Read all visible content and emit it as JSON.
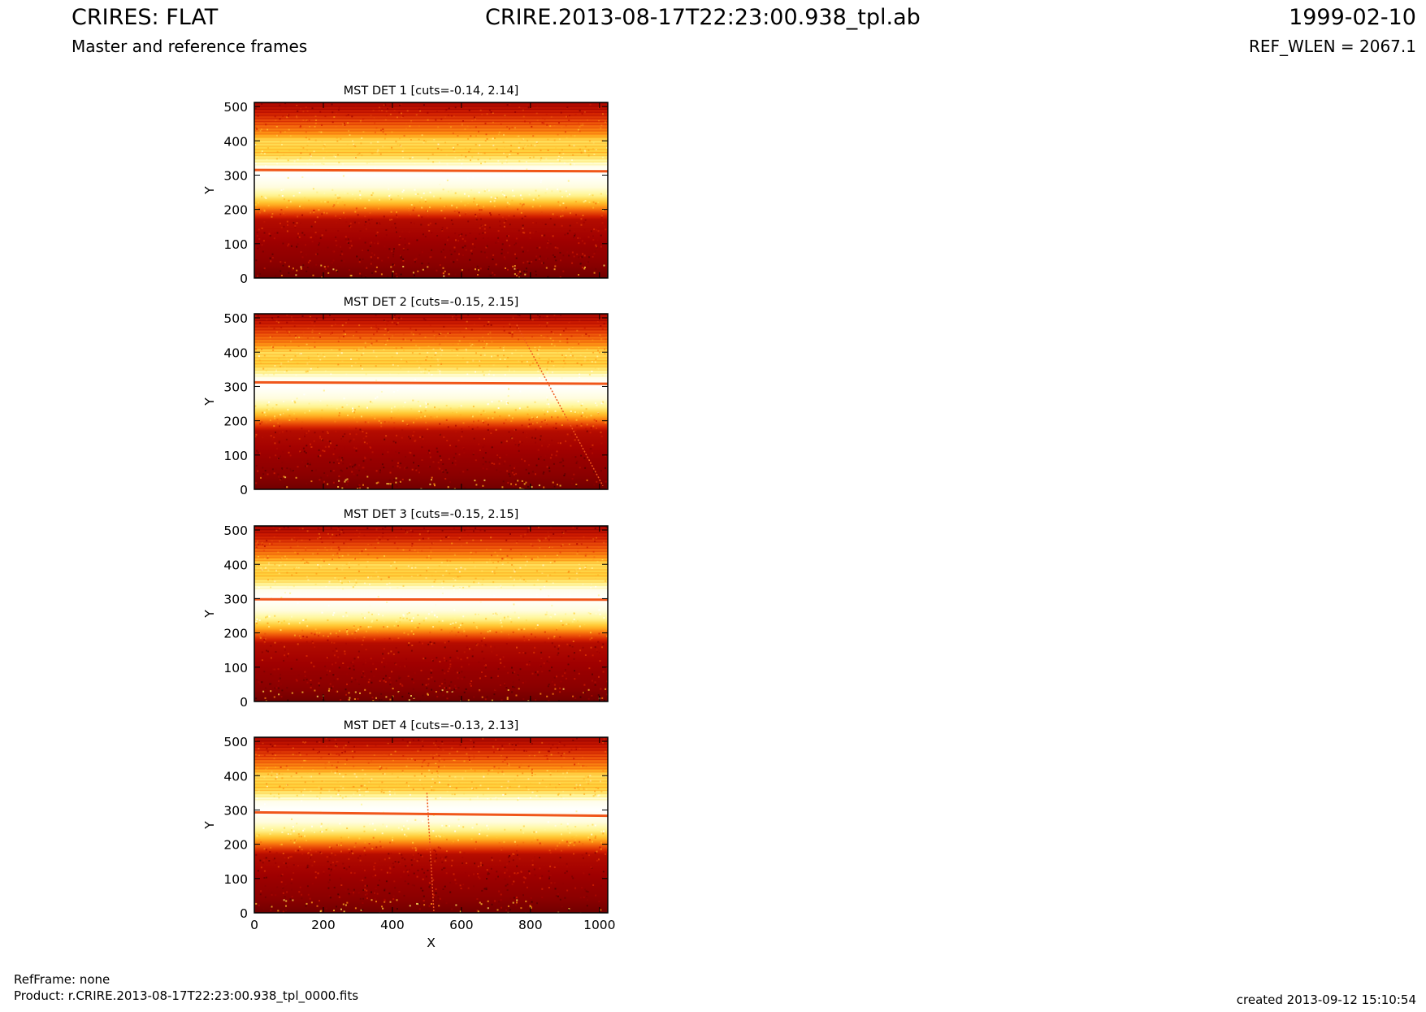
{
  "header": {
    "title": "CRIRES: FLAT",
    "subtitle": "Master and reference frames",
    "file": "CRIRE.2013-08-17T22:23:00.938_tpl.ab",
    "date": "1999-02-10",
    "ref_wlen": "REF_WLEN = 2067.1"
  },
  "footer": {
    "ref_frame": "RefFrame: none",
    "product": "Product: r.CRIRE.2013-08-17T22:23:00.938_tpl_0000.fits",
    "created": "created 2013-09-12 15:10:54"
  },
  "colors": {
    "colormap": [
      "#3a0000",
      "#6a0000",
      "#a00000",
      "#d21e00",
      "#f05a0a",
      "#ff9a14",
      "#ffd23c",
      "#fff79a",
      "#ffffff"
    ],
    "line": "#f0561a"
  },
  "chart_data": [
    {
      "type": "heatmap",
      "title": "MST DET 1 [cuts=-0.14, 2.14]",
      "xlabel": "",
      "ylabel": "Y",
      "xlim": [
        0,
        1024
      ],
      "ylim": [
        0,
        512
      ],
      "xticks": [],
      "yticks": [
        "0",
        "100",
        "200",
        "300",
        "400",
        "500"
      ],
      "cuts": [
        -0.14,
        2.14
      ],
      "bright_line": {
        "y_start": 315,
        "y_end": 311
      },
      "diagonal_streak": null
    },
    {
      "type": "heatmap",
      "title": "MST DET 2 [cuts=-0.15, 2.15]",
      "xlabel": "",
      "ylabel": "Y",
      "xlim": [
        0,
        1024
      ],
      "ylim": [
        0,
        512
      ],
      "xticks": [],
      "yticks": [
        "0",
        "100",
        "200",
        "300",
        "400",
        "500"
      ],
      "cuts": [
        -0.15,
        2.15
      ],
      "bright_line": {
        "y_start": 312,
        "y_end": 308
      },
      "diagonal_streak": {
        "x1": 760,
        "y1": 480,
        "x2": 1010,
        "y2": 10
      }
    },
    {
      "type": "heatmap",
      "title": "MST DET 3 [cuts=-0.15, 2.15]",
      "xlabel": "",
      "ylabel": "Y",
      "xlim": [
        0,
        1024
      ],
      "ylim": [
        0,
        512
      ],
      "xticks": [],
      "yticks": [
        "0",
        "100",
        "200",
        "300",
        "400",
        "500"
      ],
      "cuts": [
        -0.15,
        2.15
      ],
      "bright_line": {
        "y_start": 298,
        "y_end": 297
      },
      "diagonal_streak": null
    },
    {
      "type": "heatmap",
      "title": "MST DET 4 [cuts=-0.13, 2.13]",
      "xlabel": "X",
      "ylabel": "Y",
      "xlim": [
        0,
        1024
      ],
      "ylim": [
        0,
        512
      ],
      "xticks": [
        "0",
        "200",
        "400",
        "600",
        "800",
        "1000"
      ],
      "yticks": [
        "0",
        "100",
        "200",
        "300",
        "400",
        "500"
      ],
      "cuts": [
        -0.13,
        2.13
      ],
      "bright_line": {
        "y_start": 293,
        "y_end": 283
      },
      "diagonal_streak": {
        "x1": 500,
        "y1": 350,
        "x2": 520,
        "y2": 5
      }
    }
  ]
}
